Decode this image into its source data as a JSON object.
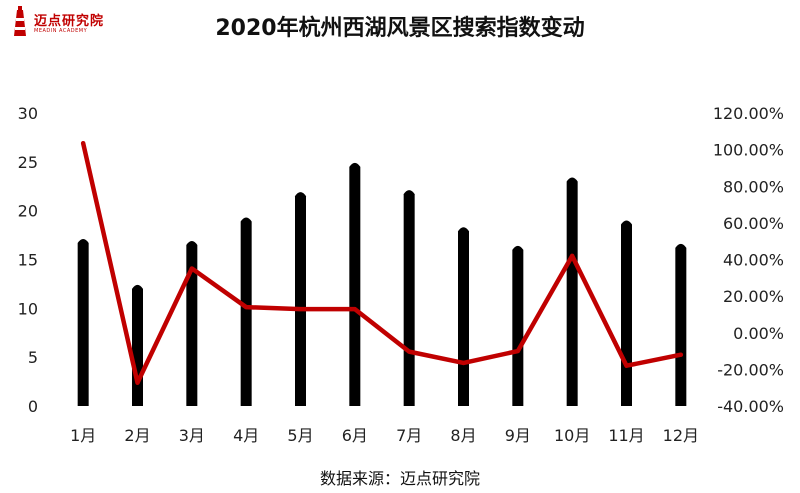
{
  "header": {
    "logo_name": "迈点研究院",
    "logo_sub": "MEADIN ACADEMY",
    "title": "2020年杭州西湖风景区搜索指数变动"
  },
  "footer": {
    "source": "数据来源：迈点研究院"
  },
  "colors": {
    "bar": "#000000",
    "line": "#c00000",
    "logo": "#c00000"
  },
  "chart_data": {
    "type": "bar",
    "title": "2020年杭州西湖风景区搜索指数变动",
    "categories": [
      "1月",
      "2月",
      "3月",
      "4月",
      "5月",
      "6月",
      "7月",
      "8月",
      "9月",
      "10月",
      "11月",
      "12月"
    ],
    "series": [
      {
        "type": "bar",
        "axis": "left",
        "values": [
          17.2,
          12.5,
          17.0,
          19.4,
          22.0,
          25.0,
          22.2,
          18.4,
          16.5,
          23.5,
          19.1,
          16.7
        ]
      },
      {
        "type": "line",
        "axis": "right",
        "values": [
          103.5,
          -27.3,
          35.1,
          14.0,
          12.9,
          12.9,
          -10.3,
          -16.5,
          -10.0,
          42.0,
          -18.0,
          -12.0
        ]
      }
    ],
    "y_left": {
      "range": [
        0,
        30
      ],
      "ticks": [
        "0",
        "5",
        "10",
        "15",
        "20",
        "25",
        "30"
      ]
    },
    "y_right": {
      "range": [
        -40,
        120
      ],
      "ticks": [
        "-40.00%",
        "-20.00%",
        "0.00%",
        "20.00%",
        "40.00%",
        "60.00%",
        "80.00%",
        "100.00%",
        "120.00%"
      ]
    },
    "grid": false,
    "legend": "none"
  }
}
